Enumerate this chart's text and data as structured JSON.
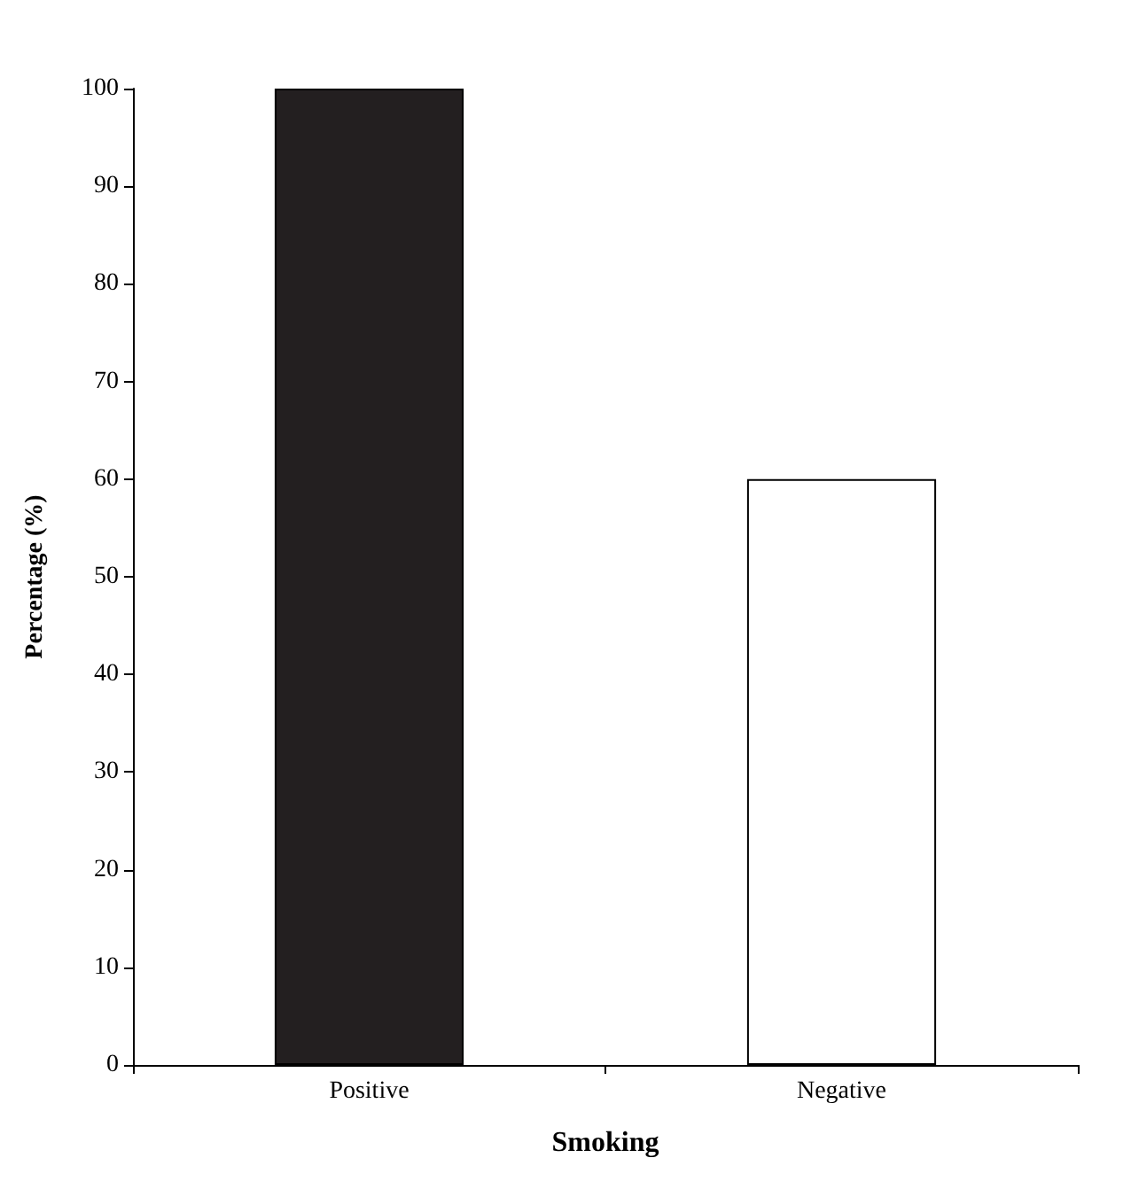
{
  "chart_data": {
    "type": "bar",
    "xlabel": "Smoking",
    "ylabel": "Percentage (%)",
    "categories": [
      "Positive",
      "Negative"
    ],
    "values": [
      100,
      60
    ],
    "colors": [
      "#231f20",
      "#ffffff"
    ],
    "ylim": [
      0,
      100
    ],
    "yticks": [
      0,
      10,
      20,
      30,
      40,
      50,
      60,
      70,
      80,
      90,
      100
    ],
    "grid": false
  }
}
